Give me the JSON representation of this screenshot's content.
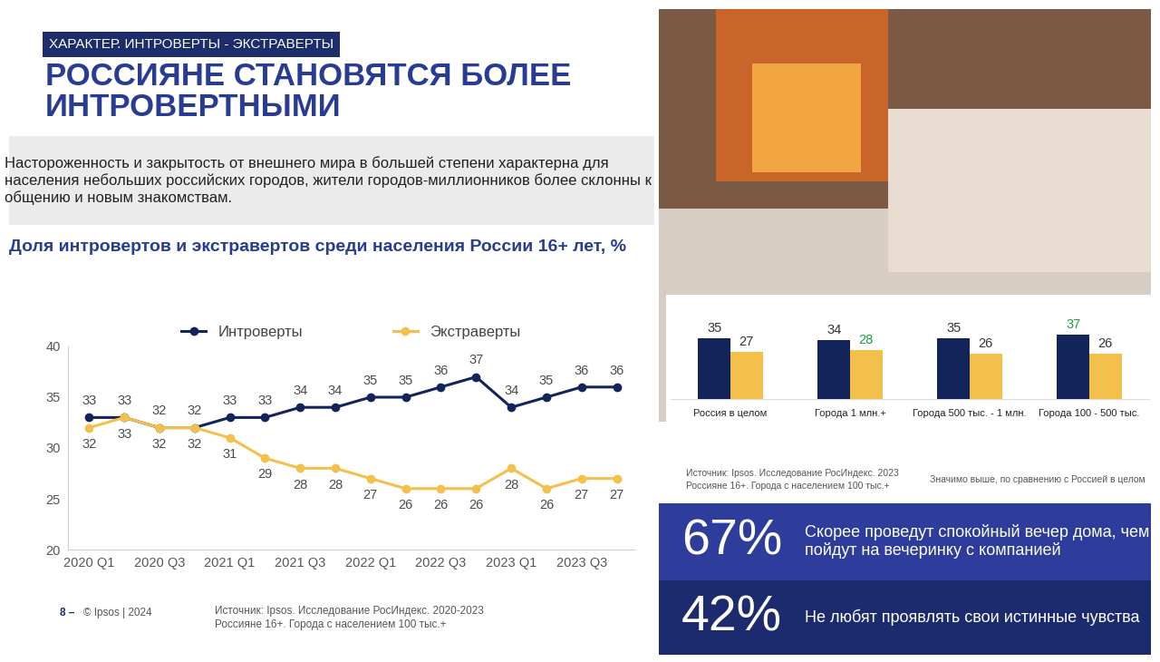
{
  "header": {
    "tag": "ХАРАКТЕР. ИНТРОВЕРТЫ - ЭКСТРАВЕРТЫ",
    "title": "РОССИЯНЕ СТАНОВЯТСЯ БОЛЕЕ ИНТРОВЕРТНЫМИ",
    "subtitle": "Настороженность и закрытость от внешнего мира в большей степени характерна для населения небольших российских городов, жители городов-миллионников более склонны к общению и новым знакомствам."
  },
  "chart_data": [
    {
      "type": "line",
      "title": "Доля интровертов и экстравертов среди населения России 16+ лет, %",
      "categories": [
        "2020 Q1",
        null,
        "2020 Q3",
        null,
        "2021 Q1",
        null,
        "2021 Q3",
        null,
        "2022 Q1",
        null,
        "2022 Q3",
        null,
        "2023 Q1",
        null,
        "2023 Q3",
        null
      ],
      "series": [
        {
          "name": "Интроверты",
          "color": "#122459",
          "marker": "o",
          "line_style": "solid",
          "values": [
            33,
            33,
            32,
            32,
            33,
            33,
            34,
            34,
            35,
            35,
            36,
            37,
            34,
            35,
            36,
            36
          ]
        },
        {
          "name": "Экстраверты",
          "color": "#f3c04c",
          "marker": "o",
          "line_style": "solid",
          "values": [
            32,
            33,
            32,
            32,
            31,
            29,
            28,
            28,
            27,
            26,
            26,
            26,
            28,
            26,
            27,
            27
          ]
        }
      ],
      "ylim": [
        20,
        40
      ],
      "yticks": [
        20,
        25,
        30,
        35,
        40
      ],
      "grid": false,
      "legend": "upper center",
      "data_labels": true,
      "source": [
        "Источник: Ipsos. Исследование РосИндекс. 2020-2023",
        "Россияне 16+. Города с населением 100 тыс.+"
      ]
    },
    {
      "type": "bar",
      "categories": [
        "Россия в целом",
        "Города 1 млн.+",
        "Города 500 тыс. - 1 млн.",
        "Города 100 - 500 тыс."
      ],
      "series": [
        {
          "color": "#122459",
          "values": [
            35,
            34,
            35,
            37
          ],
          "significant": [
            false,
            false,
            false,
            true
          ]
        },
        {
          "color": "#f3c04c",
          "values": [
            27,
            28,
            26,
            26
          ],
          "significant": [
            false,
            true,
            false,
            false
          ]
        }
      ],
      "ylim": [
        0,
        45
      ],
      "grid": false,
      "data_labels": true,
      "tick_labels": "x",
      "source": [
        "Источник: Ipsos. Исследование РосИндекс. 2023",
        "Россияне 16+. Города с населением 100 тыс.+"
      ],
      "note": "Значимо выше, по сравнению с Россией в целом"
    }
  ],
  "stats": [
    {
      "number": "67%",
      "text": "Скорее проведут спокойный вечер дома, чем пойдут на вечеринку с компанией"
    },
    {
      "number": "42%",
      "text": "Не любят проявлять свои истинные чувства"
    }
  ],
  "footer": {
    "page": "8 –",
    "copyright": "© Ipsos | 2024"
  }
}
